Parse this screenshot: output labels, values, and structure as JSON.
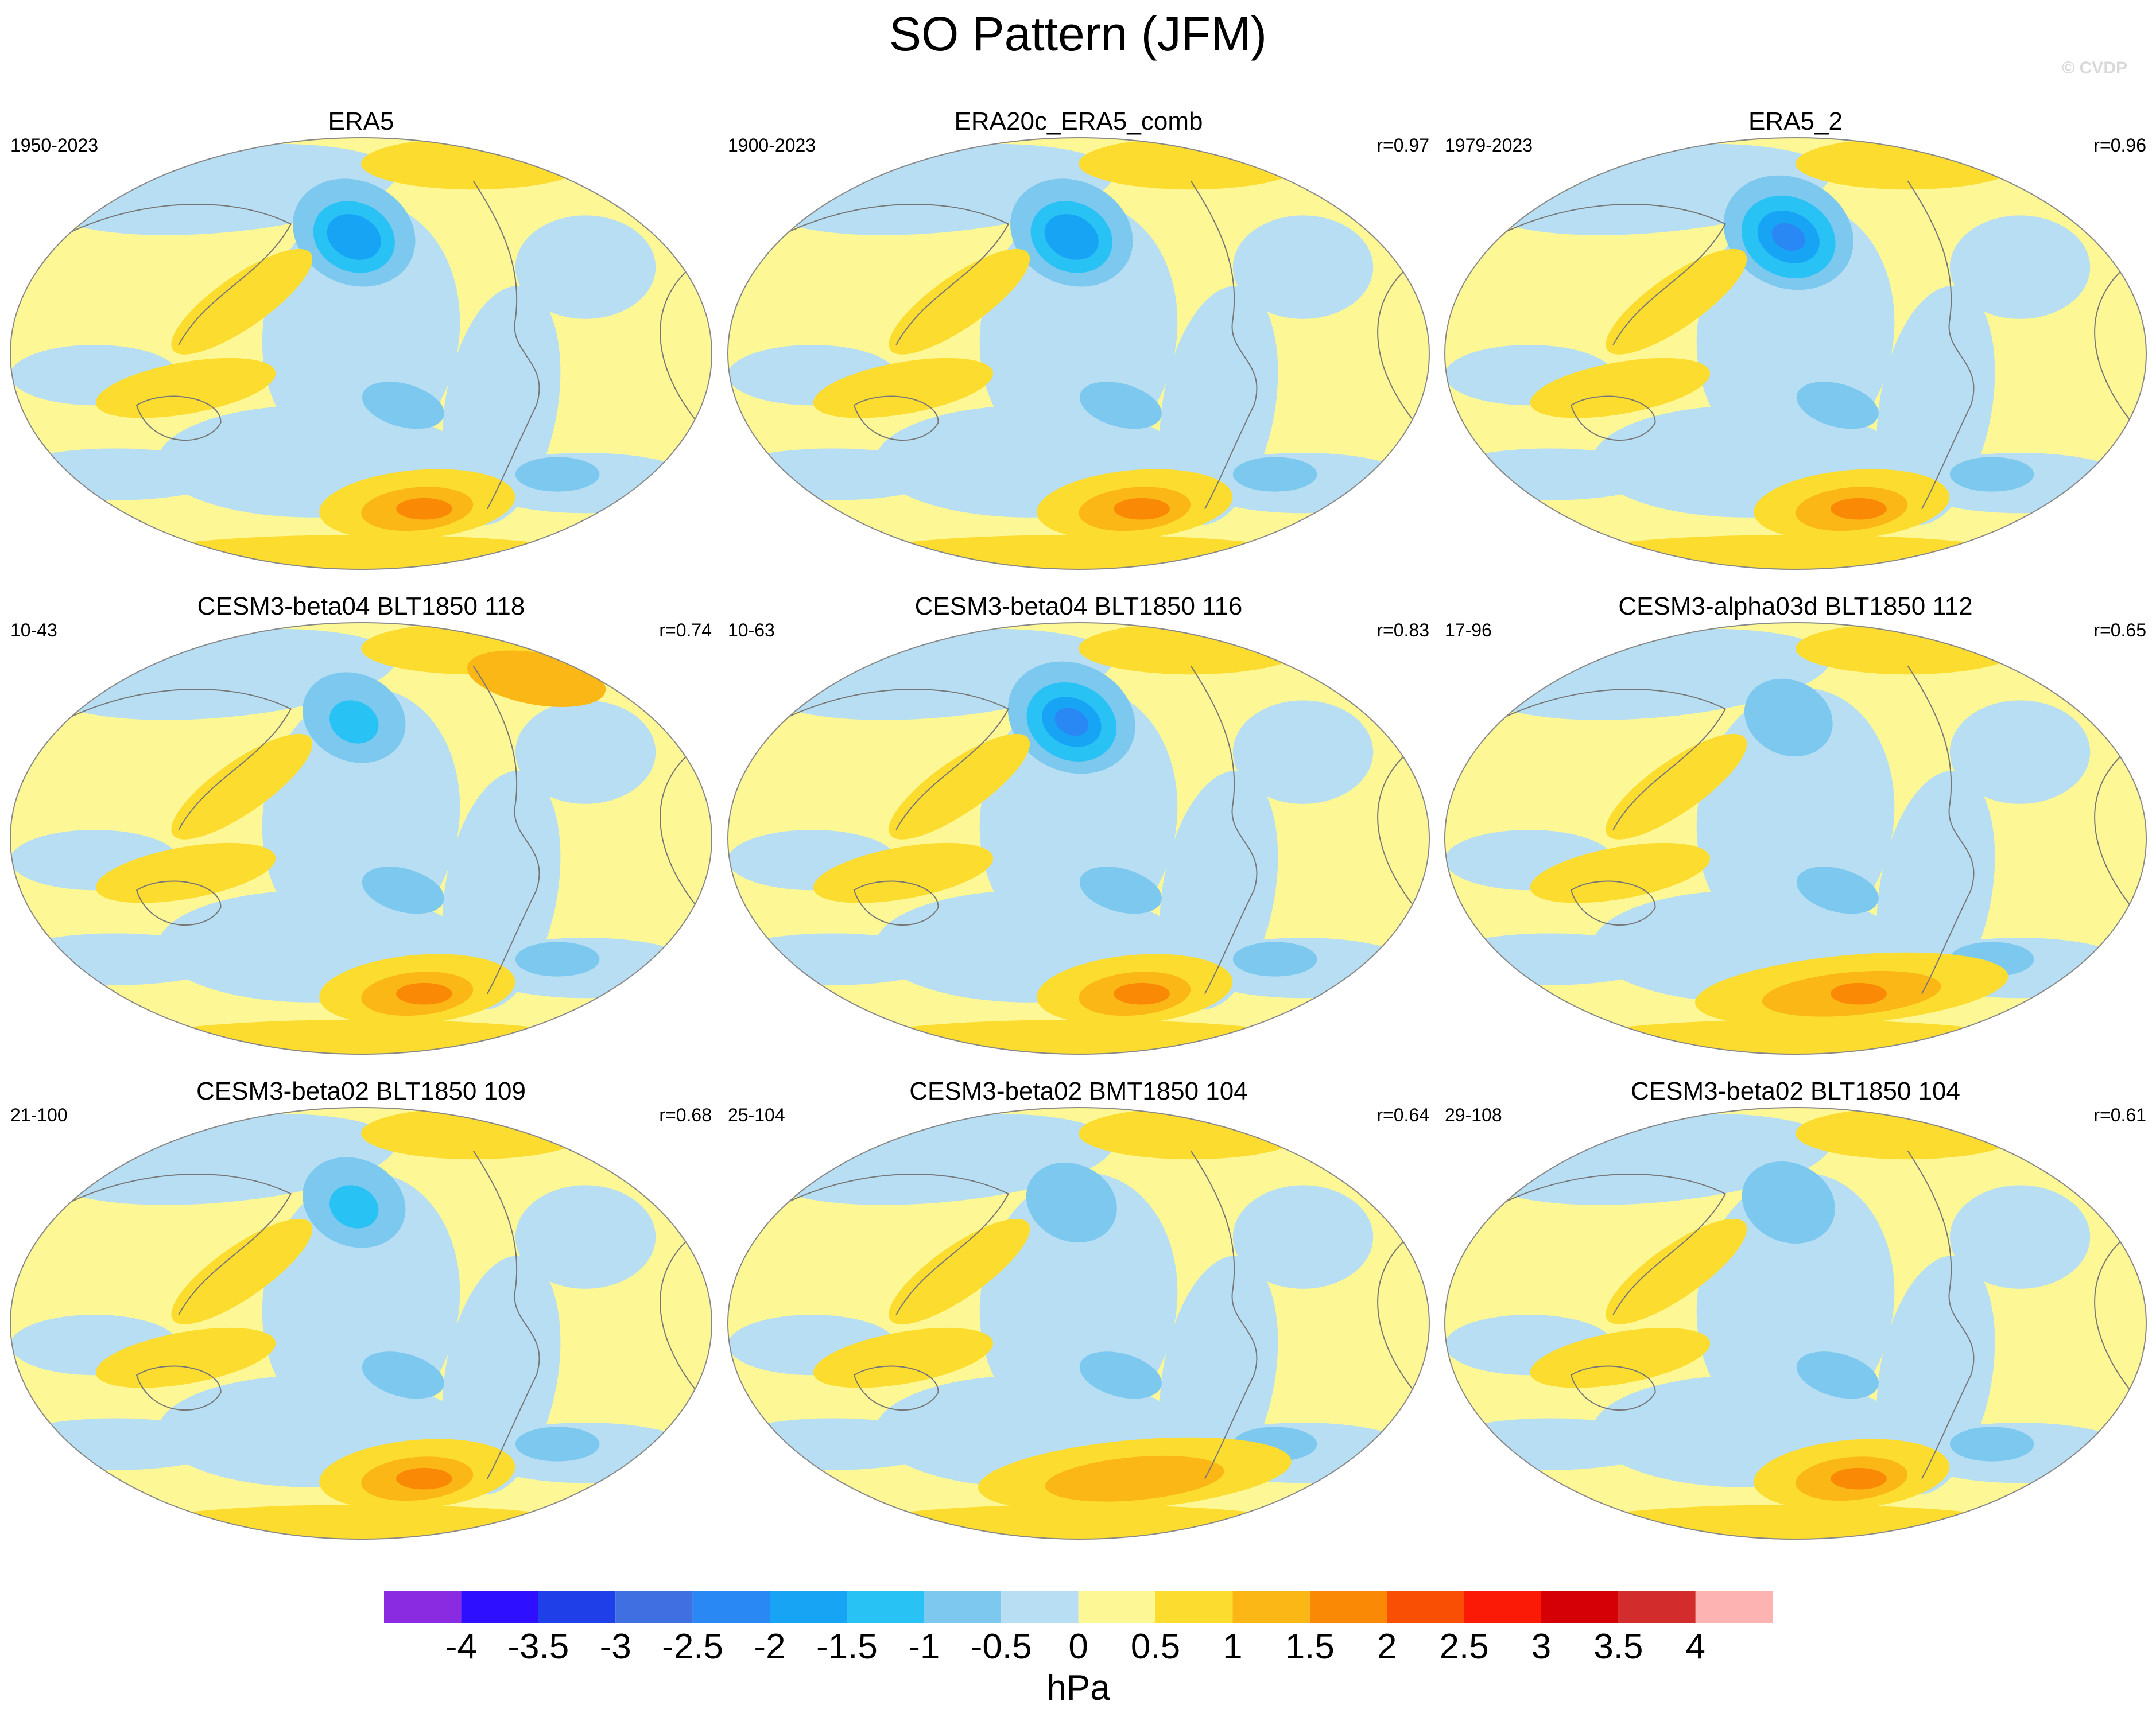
{
  "title": "SO Pattern (JFM)",
  "watermark": "© CVDP",
  "panels": [
    {
      "title": "ERA5",
      "period": "1950-2023",
      "r": "",
      "style": "era",
      "lowStrength": 1.0
    },
    {
      "title": "ERA20c_ERA5_comb",
      "period": "1900-2023",
      "r": "r=0.97",
      "style": "era",
      "lowStrength": 1.0
    },
    {
      "title": "ERA5_2",
      "period": "1979-2023",
      "r": "r=0.96",
      "style": "era",
      "lowStrength": 1.15
    },
    {
      "title": "CESM3-beta04 BLT1850 118",
      "period": "10-43",
      "r": "r=0.74",
      "style": "model_a",
      "lowStrength": 0.6
    },
    {
      "title": "CESM3-beta04 BLT1850 116",
      "period": "10-63",
      "r": "r=0.83",
      "style": "model_b",
      "lowStrength": 1.1
    },
    {
      "title": "CESM3-alpha03d BLT1850 112",
      "period": "17-96",
      "r": "r=0.65",
      "style": "model_c",
      "lowStrength": 0.3
    },
    {
      "title": "CESM3-beta02 BLT1850 109",
      "period": "21-100",
      "r": "r=0.68",
      "style": "model_d",
      "lowStrength": 0.6
    },
    {
      "title": "CESM3-beta02 BMT1850 104",
      "period": "25-104",
      "r": "r=0.64",
      "style": "model_e",
      "lowStrength": 0.35
    },
    {
      "title": "CESM3-beta02 BLT1850 104",
      "period": "29-108",
      "r": "r=0.61",
      "style": "model_f",
      "lowStrength": 0.4
    }
  ],
  "colorbar": {
    "unit": "hPa",
    "colors": [
      "#8a2be2",
      "#2e0fff",
      "#1f3fe8",
      "#3f6fe0",
      "#2a88f5",
      "#18a4f5",
      "#28c2f5",
      "#7cc8ee",
      "#b7def2",
      "#fdf795",
      "#fddc30",
      "#fbb715",
      "#fa8a05",
      "#f84f05",
      "#fb1a05",
      "#d40005",
      "#d22c2c",
      "#feb3b3"
    ],
    "labels": [
      "-4",
      "-3.5",
      "-3",
      "-2.5",
      "-2",
      "-1.5",
      "-1",
      "-0.5",
      "0",
      "0.5",
      "1",
      "1.5",
      "2",
      "2.5",
      "3",
      "3.5",
      "4"
    ]
  }
}
